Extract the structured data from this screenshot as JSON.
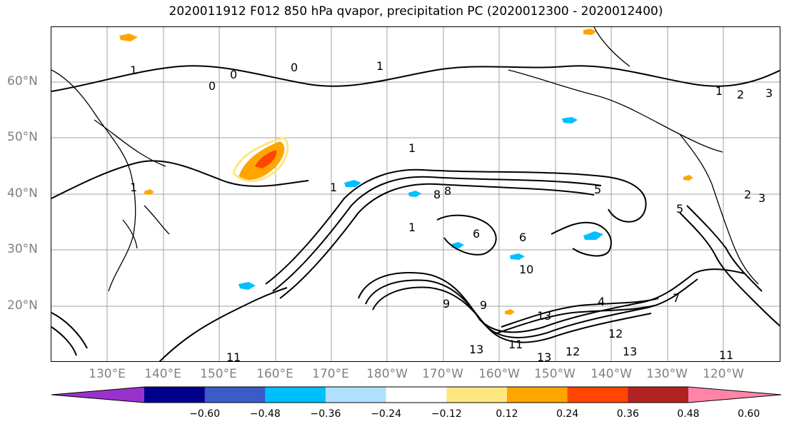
{
  "title": "2020011912 F012 850 hPa qvapor, precipitation PC (2020012300 - 2020012400)",
  "map": {
    "lat_labels": [
      "60°N",
      "50°N",
      "40°N",
      "30°N",
      "20°N"
    ],
    "lon_labels": [
      "130°E",
      "140°E",
      "150°E",
      "160°E",
      "170°E",
      "180°W",
      "170°W",
      "160°W",
      "150°W",
      "140°W",
      "130°W",
      "120°W"
    ],
    "contour_labels": [
      "1",
      "0",
      "1",
      "1",
      "0",
      "1",
      "2",
      "3",
      "0",
      "1",
      "1",
      "1",
      "8",
      "6",
      "5",
      "6",
      "4",
      "7",
      "9",
      "11",
      "13",
      "11",
      "13",
      "12",
      "13",
      "12",
      "11",
      "13",
      "5",
      "2",
      "3",
      "9",
      "10",
      "8"
    ],
    "gridlines": true,
    "coastline_color": "#000000"
  },
  "colorbar": {
    "tick_labels": [
      "−0.60",
      "−0.48",
      "−0.36",
      "−0.24",
      "−0.12",
      "0.12",
      "0.24",
      "0.36",
      "0.48",
      "0.60"
    ],
    "colors": [
      "#9932CC",
      "#00008B",
      "#3A5BC8",
      "#00BFFF",
      "#B0E0FF",
      "#FFFFFF",
      "#FFE680",
      "#FFA500",
      "#FF4500",
      "#B22222",
      "#FF85A8"
    ]
  }
}
